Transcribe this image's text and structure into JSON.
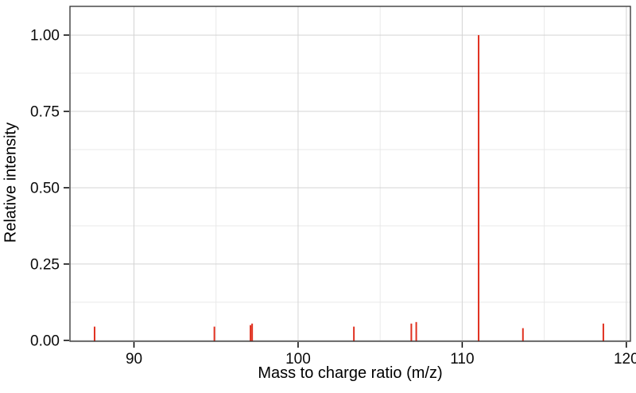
{
  "chart_data": {
    "type": "bar",
    "style": "mass-spectrum-stick-plot",
    "title": "",
    "xlabel": "Mass to charge ratio (m/z)",
    "ylabel": "Relative intensity",
    "xlim": [
      86.1,
      120.25
    ],
    "ylim": [
      -0.003,
      1.094
    ],
    "grid": "on",
    "legend": "none",
    "x_major_ticks": [
      {
        "v": 90,
        "label": "90"
      },
      {
        "v": 100,
        "label": "100"
      },
      {
        "v": 110,
        "label": "110"
      },
      {
        "v": 120,
        "label": "120"
      }
    ],
    "x_minor_ticks": [
      95,
      105,
      115
    ],
    "y_major_ticks": [
      {
        "v": 0.0,
        "label": "0.00"
      },
      {
        "v": 0.25,
        "label": "0.25"
      },
      {
        "v": 0.5,
        "label": "0.50"
      },
      {
        "v": 0.75,
        "label": "0.75"
      },
      {
        "v": 1.0,
        "label": "1.00"
      }
    ],
    "y_minor_ticks": [
      0.125,
      0.375,
      0.625,
      0.875
    ],
    "peaks": [
      {
        "mz": 87.6,
        "intensity": 0.045
      },
      {
        "mz": 94.9,
        "intensity": 0.045
      },
      {
        "mz": 97.1,
        "intensity": 0.05
      },
      {
        "mz": 97.2,
        "intensity": 0.055
      },
      {
        "mz": 103.4,
        "intensity": 0.045
      },
      {
        "mz": 106.9,
        "intensity": 0.055
      },
      {
        "mz": 107.2,
        "intensity": 0.06
      },
      {
        "mz": 111.0,
        "intensity": 1.0
      },
      {
        "mz": 113.7,
        "intensity": 0.04
      },
      {
        "mz": 118.6,
        "intensity": 0.055
      }
    ],
    "colors": {
      "peak": "#e0301f",
      "grid_major": "#d4d4d4",
      "grid_minor": "#e9e9e9",
      "panel_border": "#2e2e2e",
      "tick": "#000000",
      "tick_label": "#0a0a0a",
      "axis_title": "#000000",
      "background": "#ffffff"
    }
  }
}
